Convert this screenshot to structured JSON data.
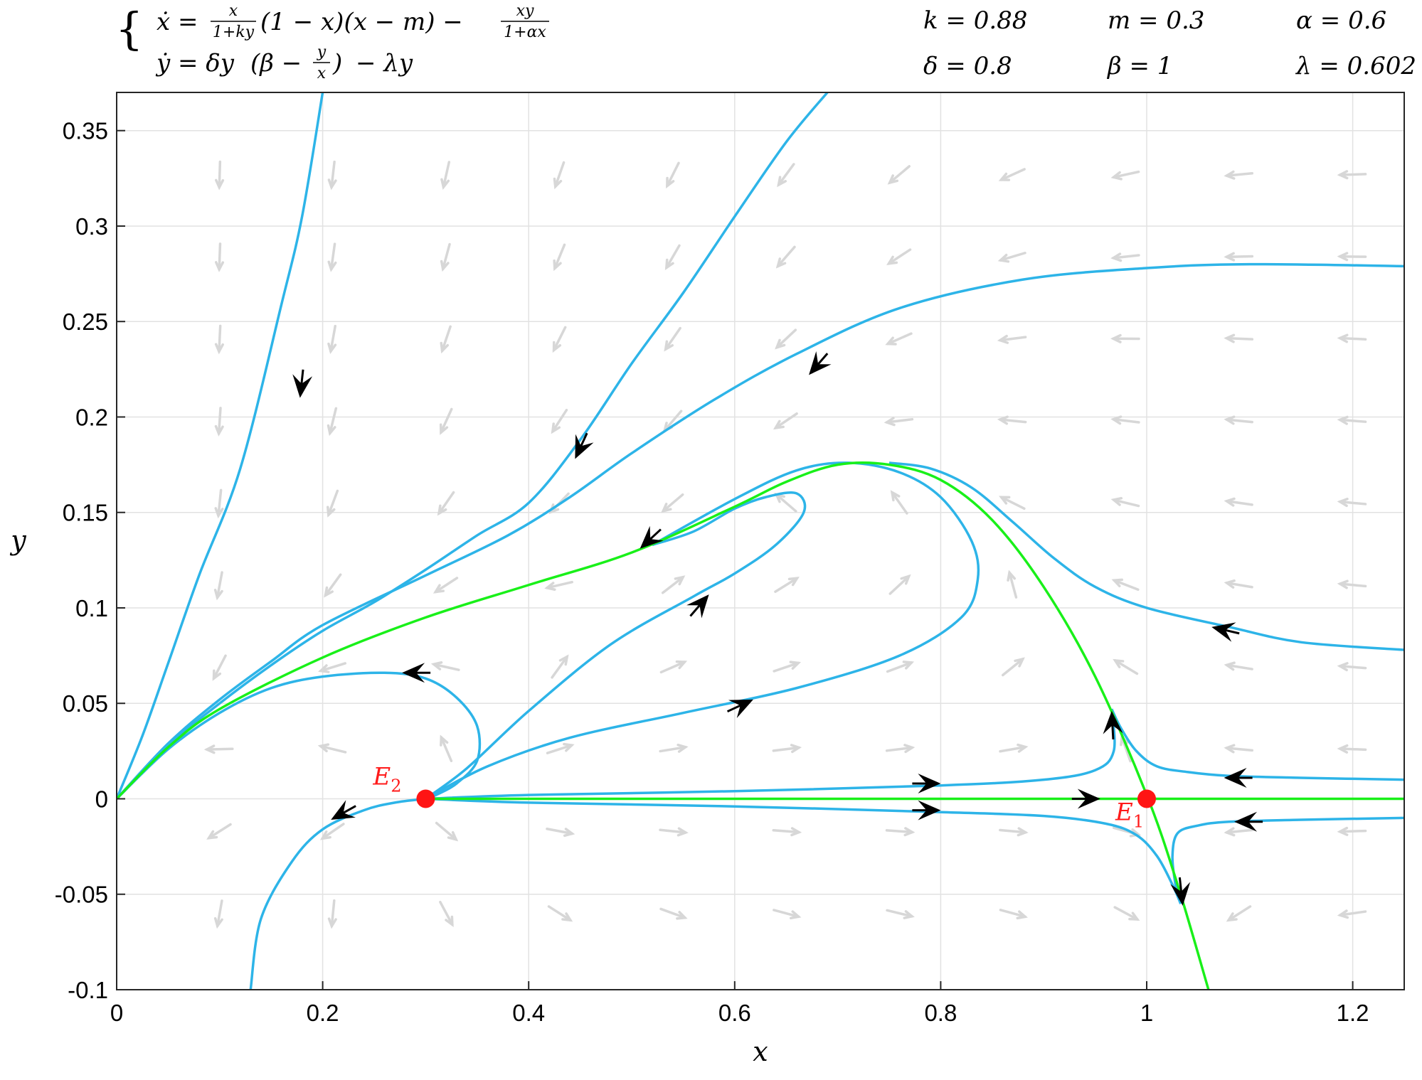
{
  "equations": {
    "xdot_lhs": "ẋ =",
    "xdot_frac1_num": "x",
    "xdot_frac1_den": "1+ky",
    "xdot_mid": "(1 − x)(x − m) −",
    "xdot_frac2_num": "xy",
    "xdot_frac2_den": "1+αx",
    "ydot_lhs": "ẏ = δy",
    "ydot_open": "(β −",
    "ydot_frac_num": "y",
    "ydot_frac_den": "x",
    "ydot_close": ")",
    "ydot_tail": "− λy"
  },
  "parameters": [
    {
      "text": "k = 0.88"
    },
    {
      "text": "m = 0.3"
    },
    {
      "text": "α = 0.6"
    },
    {
      "text": "δ = 0.8"
    },
    {
      "text": "β = 1"
    },
    {
      "text": "λ = 0.602"
    }
  ],
  "colors": {
    "trajectory": "#2db4e8",
    "separatrix": "#19f019",
    "equilibrium": "#ff1414",
    "quiver": "#d7d7d7",
    "grid": "#e2e2e2",
    "arrow": "#000000"
  },
  "chart_data": {
    "type": "phase-portrait",
    "title": "",
    "xlabel": "x",
    "ylabel": "y",
    "xlim": [
      0,
      1.25
    ],
    "ylim": [
      -0.1,
      0.37
    ],
    "grid": true,
    "x_ticks": [
      {
        "value": 0,
        "label": "0"
      },
      {
        "value": 0.2,
        "label": "0.2"
      },
      {
        "value": 0.4,
        "label": "0.4"
      },
      {
        "value": 0.6,
        "label": "0.6"
      },
      {
        "value": 0.8,
        "label": "0.8"
      },
      {
        "value": 1.0,
        "label": "1"
      },
      {
        "value": 1.2,
        "label": "1.2"
      }
    ],
    "y_ticks": [
      {
        "value": -0.1,
        "label": "-0.1"
      },
      {
        "value": -0.05,
        "label": "-0.05"
      },
      {
        "value": 0,
        "label": "0"
      },
      {
        "value": 0.05,
        "label": "0.05"
      },
      {
        "value": 0.1,
        "label": "0.1"
      },
      {
        "value": 0.15,
        "label": "0.15"
      },
      {
        "value": 0.2,
        "label": "0.2"
      },
      {
        "value": 0.25,
        "label": "0.25"
      },
      {
        "value": 0.3,
        "label": "0.3"
      },
      {
        "value": 0.35,
        "label": "0.35"
      }
    ],
    "equilibria": [
      {
        "label": "E",
        "subscript": "2",
        "x": 0.3,
        "y": 0
      },
      {
        "label": "E",
        "subscript": "1",
        "x": 1.0,
        "y": 0
      }
    ],
    "separatrices": [
      {
        "name": "green-curve-upper",
        "points": [
          [
            0,
            0
          ],
          [
            0.05,
            0.027
          ],
          [
            0.1,
            0.047
          ],
          [
            0.2,
            0.074
          ],
          [
            0.3,
            0.095
          ],
          [
            0.4,
            0.112
          ],
          [
            0.5,
            0.129
          ],
          [
            0.6,
            0.153
          ],
          [
            0.65,
            0.166
          ],
          [
            0.7,
            0.175
          ],
          [
            0.75,
            0.175
          ],
          [
            0.8,
            0.167
          ],
          [
            0.85,
            0.146
          ],
          [
            0.9,
            0.111
          ],
          [
            0.95,
            0.064
          ],
          [
            1.0,
            0.002
          ],
          [
            1.03,
            -0.045
          ],
          [
            1.06,
            -0.1
          ]
        ]
      },
      {
        "name": "green-curve-axis",
        "points": [
          [
            0.3,
            0
          ],
          [
            1.25,
            0
          ]
        ]
      }
    ],
    "trajectories": [
      {
        "name": "traj-1",
        "arrows": [
          0.8
        ],
        "points": [
          [
            0.13,
            -0.1
          ],
          [
            0.14,
            -0.063
          ],
          [
            0.17,
            -0.033
          ],
          [
            0.2,
            -0.016
          ],
          [
            0.24,
            -0.006
          ],
          [
            0.27,
            -0.002
          ],
          [
            0.3,
            0
          ]
        ]
      },
      {
        "name": "traj-2",
        "arrows": [
          0.5
        ],
        "points": [
          [
            0,
            0
          ],
          [
            0.025,
            0.033
          ],
          [
            0.05,
            0.071
          ],
          [
            0.08,
            0.117
          ],
          [
            0.12,
            0.173
          ],
          [
            0.16,
            0.259
          ],
          [
            0.18,
            0.305
          ],
          [
            0.2,
            0.37
          ]
        ]
      },
      {
        "name": "traj-3",
        "arrows": [
          0.58
        ],
        "points": [
          [
            0,
            0
          ],
          [
            0.05,
            0.028
          ],
          [
            0.1,
            0.05
          ],
          [
            0.15,
            0.07
          ],
          [
            0.2,
            0.088
          ],
          [
            0.25,
            0.103
          ],
          [
            0.3,
            0.12
          ],
          [
            0.35,
            0.138
          ],
          [
            0.4,
            0.155
          ],
          [
            0.45,
            0.188
          ],
          [
            0.5,
            0.228
          ],
          [
            0.55,
            0.265
          ],
          [
            0.6,
            0.305
          ],
          [
            0.65,
            0.344
          ],
          [
            0.69,
            0.37
          ]
        ]
      },
      {
        "name": "traj-4",
        "arrows": [
          0.52
        ],
        "points": [
          [
            0,
            0
          ],
          [
            0.05,
            0.029
          ],
          [
            0.1,
            0.052
          ],
          [
            0.15,
            0.072
          ],
          [
            0.2,
            0.091
          ],
          [
            0.3,
            0.117
          ],
          [
            0.38,
            0.138
          ],
          [
            0.44,
            0.158
          ],
          [
            0.5,
            0.181
          ],
          [
            0.58,
            0.209
          ],
          [
            0.66,
            0.233
          ],
          [
            0.76,
            0.257
          ],
          [
            0.88,
            0.272
          ],
          [
            1.0,
            0.278
          ],
          [
            1.1,
            0.28
          ],
          [
            1.25,
            0.279
          ]
        ]
      },
      {
        "name": "traj-5",
        "arrows": [
          0.28
        ],
        "points": [
          [
            0,
            0
          ],
          [
            0.05,
            0.026
          ],
          [
            0.1,
            0.045
          ],
          [
            0.15,
            0.058
          ],
          [
            0.2,
            0.064
          ],
          [
            0.26,
            0.066
          ],
          [
            0.3,
            0.063
          ],
          [
            0.33,
            0.053
          ],
          [
            0.35,
            0.038
          ],
          [
            0.35,
            0.02
          ],
          [
            0.33,
            0.008
          ],
          [
            0.31,
            0.002
          ],
          [
            0.3,
            0
          ]
        ]
      },
      {
        "name": "traj-6",
        "arrows": [
          0.75
        ],
        "points": [
          [
            0.3,
            0
          ],
          [
            0.34,
            0.016
          ],
          [
            0.4,
            0.046
          ],
          [
            0.48,
            0.081
          ],
          [
            0.56,
            0.106
          ],
          [
            0.6,
            0.118
          ],
          [
            0.64,
            0.133
          ],
          [
            0.667,
            0.15
          ],
          [
            0.66,
            0.16
          ],
          [
            0.63,
            0.158
          ],
          [
            0.6,
            0.152
          ],
          [
            0.56,
            0.14
          ],
          [
            0.52,
            0.133
          ]
        ]
      },
      {
        "name": "traj-7",
        "arrows": [
          0.45
        ],
        "points": [
          [
            0.3,
            0
          ],
          [
            0.36,
            0.017
          ],
          [
            0.44,
            0.032
          ],
          [
            0.55,
            0.045
          ],
          [
            0.66,
            0.058
          ],
          [
            0.76,
            0.075
          ],
          [
            0.82,
            0.095
          ],
          [
            0.836,
            0.115
          ],
          [
            0.83,
            0.135
          ],
          [
            0.8,
            0.158
          ],
          [
            0.76,
            0.171
          ],
          [
            0.71,
            0.176
          ],
          [
            0.66,
            0.172
          ],
          [
            0.6,
            0.157
          ],
          [
            0.52,
            0.133
          ]
        ]
      },
      {
        "name": "traj-8",
        "arrows": [
          0.6
        ],
        "points": [
          [
            1.25,
            0.078
          ],
          [
            1.15,
            0.082
          ],
          [
            1.08,
            0.09
          ],
          [
            1.0,
            0.1
          ],
          [
            0.95,
            0.111
          ],
          [
            0.91,
            0.126
          ],
          [
            0.87,
            0.145
          ],
          [
            0.83,
            0.163
          ],
          [
            0.79,
            0.173
          ],
          [
            0.75,
            0.176
          ]
        ]
      },
      {
        "name": "traj-9",
        "arrows": [
          0.65
        ],
        "points": [
          [
            0.3,
            0
          ],
          [
            0.4,
            0.002
          ],
          [
            0.6,
            0.004
          ],
          [
            0.8,
            0.007
          ],
          [
            0.9,
            0.01
          ],
          [
            0.95,
            0.015
          ],
          [
            0.968,
            0.025
          ],
          [
            0.966,
            0.047
          ]
        ]
      },
      {
        "name": "traj-10",
        "arrows": [
          0.5
        ],
        "points": [
          [
            1.25,
            0.01
          ],
          [
            1.15,
            0.011
          ],
          [
            1.08,
            0.012
          ],
          [
            1.04,
            0.014
          ],
          [
            1.01,
            0.017
          ],
          [
            0.99,
            0.025
          ],
          [
            0.975,
            0.037
          ],
          [
            0.966,
            0.047
          ]
        ]
      },
      {
        "name": "traj-11",
        "arrows": [
          0.65
        ],
        "points": [
          [
            0.3,
            0
          ],
          [
            0.4,
            -0.002
          ],
          [
            0.6,
            -0.004
          ],
          [
            0.8,
            -0.007
          ],
          [
            0.9,
            -0.009
          ],
          [
            0.96,
            -0.013
          ],
          [
            0.99,
            -0.019
          ],
          [
            1.01,
            -0.03
          ],
          [
            1.025,
            -0.045
          ],
          [
            1.033,
            -0.055
          ]
        ]
      },
      {
        "name": "traj-12",
        "arrows": [
          0.5
        ],
        "points": [
          [
            1.25,
            -0.01
          ],
          [
            1.15,
            -0.011
          ],
          [
            1.08,
            -0.012
          ],
          [
            1.05,
            -0.014
          ],
          [
            1.03,
            -0.018
          ],
          [
            1.025,
            -0.03
          ],
          [
            1.028,
            -0.045
          ],
          [
            1.033,
            -0.055
          ]
        ]
      }
    ],
    "black_arrows": [
      {
        "x": 0.178,
        "y": 0.21,
        "dx": -0.02,
        "dy": -0.1
      },
      {
        "x": 0.445,
        "y": 0.178,
        "dx": -0.03,
        "dy": -0.035
      },
      {
        "x": 0.672,
        "y": 0.222,
        "dx": -0.04,
        "dy": -0.025
      },
      {
        "x": 0.508,
        "y": 0.131,
        "dx": -0.04,
        "dy": -0.02
      },
      {
        "x": 0.277,
        "y": 0.066,
        "dx": -0.04,
        "dy": 0.0
      },
      {
        "x": 0.208,
        "y": -0.011,
        "dx": -0.04,
        "dy": -0.012
      },
      {
        "x": 0.575,
        "y": 0.107,
        "dx": 0.04,
        "dy": 0.025
      },
      {
        "x": 0.618,
        "y": 0.052,
        "dx": 0.04,
        "dy": 0.01
      },
      {
        "x": 0.8,
        "y": 0.008,
        "dx": 0.04,
        "dy": 0.0
      },
      {
        "x": 0.8,
        "y": -0.006,
        "dx": 0.04,
        "dy": 0.0
      },
      {
        "x": 0.955,
        "y": 0.0,
        "dx": 0.04,
        "dy": 0.0
      },
      {
        "x": 0.966,
        "y": 0.046,
        "dx": -0.002,
        "dy": 0.02
      },
      {
        "x": 1.075,
        "y": 0.011,
        "dx": -0.04,
        "dy": 0.0
      },
      {
        "x": 1.085,
        "y": -0.012,
        "dx": -0.04,
        "dy": 0.0
      },
      {
        "x": 1.035,
        "y": -0.056,
        "dx": 0.004,
        "dy": -0.02
      },
      {
        "x": 1.063,
        "y": 0.09,
        "dx": -0.04,
        "dy": 0.005
      }
    ]
  }
}
